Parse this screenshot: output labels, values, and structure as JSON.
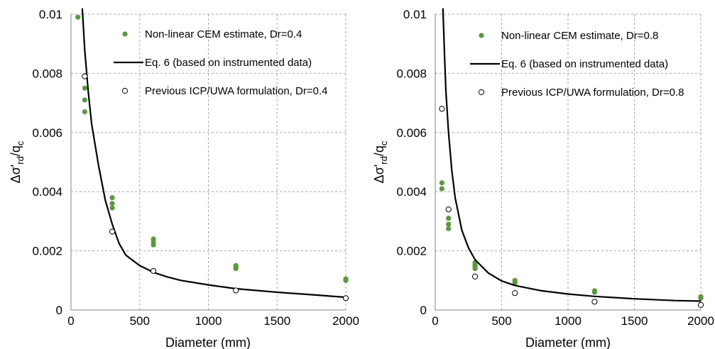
{
  "chart_data": [
    {
      "type": "scatter",
      "title": "",
      "xlabel": "Diameter (mm)",
      "ylabel": {
        "main": "Δσ'",
        "sub1": "rd",
        "slash": "/q",
        "sub2": "c"
      },
      "xlim": [
        0,
        2000
      ],
      "ylim": [
        0,
        0.01
      ],
      "xticks": [
        0,
        500,
        1000,
        1500,
        2000
      ],
      "yticks": [
        0,
        0.002,
        0.004,
        0.006,
        0.008,
        0.01
      ],
      "xtick_labels": [
        "0",
        "500",
        "1000",
        "1500",
        "2000"
      ],
      "ytick_labels": [
        "0",
        "0.002",
        "0.004",
        "0.006",
        "0.008",
        "0.01"
      ],
      "grid": true,
      "legend_position": "top-right, inside plot",
      "series": [
        {
          "name": "Non-linear CEM estimate, Dr=0.4",
          "kind": "points-filled",
          "color": "#5b9a3c",
          "points": [
            [
              50,
              0.0099
            ],
            [
              100,
              0.0075
            ],
            [
              100,
              0.0071
            ],
            [
              100,
              0.0067
            ],
            [
              300,
              0.0038
            ],
            [
              300,
              0.0036
            ],
            [
              300,
              0.00345
            ],
            [
              600,
              0.0024
            ],
            [
              600,
              0.0023
            ],
            [
              600,
              0.0022
            ],
            [
              1200,
              0.0015
            ],
            [
              1200,
              0.00145
            ],
            [
              1200,
              0.0014
            ],
            [
              2000,
              0.00105
            ],
            [
              2000,
              0.001
            ]
          ]
        },
        {
          "name": "Eq. 6 (based on instrumented data)",
          "kind": "line",
          "color": "#000000",
          "points": [
            [
              82,
              0.0102
            ],
            [
              100,
              0.0088
            ],
            [
              125,
              0.0074
            ],
            [
              150,
              0.0063
            ],
            [
              200,
              0.0049
            ],
            [
              250,
              0.0037
            ],
            [
              300,
              0.0029
            ],
            [
              350,
              0.00225
            ],
            [
              400,
              0.00185
            ],
            [
              500,
              0.0015
            ],
            [
              600,
              0.00127
            ],
            [
              700,
              0.00112
            ],
            [
              800,
              0.001
            ],
            [
              1000,
              0.00085
            ],
            [
              1200,
              0.00072
            ],
            [
              1500,
              0.0006
            ],
            [
              1800,
              0.0005
            ],
            [
              2000,
              0.00043
            ]
          ]
        },
        {
          "name": "Previous ICP/UWA formulation, Dr=0.4",
          "kind": "points-open",
          "color": "#000000",
          "points": [
            [
              100,
              0.0079
            ],
            [
              300,
              0.00265
            ],
            [
              600,
              0.00132
            ],
            [
              1200,
              0.00066
            ],
            [
              2000,
              0.0004
            ]
          ]
        }
      ]
    },
    {
      "type": "scatter",
      "title": "",
      "xlabel": "Diameter (mm)",
      "ylabel": {
        "main": "Δσ'",
        "sub1": "rd",
        "slash": "/q",
        "sub2": "c"
      },
      "xlim": [
        0,
        2000
      ],
      "ylim": [
        0,
        0.01
      ],
      "xticks": [
        0,
        500,
        1000,
        1500,
        2000
      ],
      "yticks": [
        0,
        0.002,
        0.004,
        0.006,
        0.008,
        0.01
      ],
      "xtick_labels": [
        "0",
        "500",
        "1000",
        "1500",
        "2000"
      ],
      "ytick_labels": [
        "0",
        "0.002",
        "0.004",
        "0.006",
        "0.008",
        "0.01"
      ],
      "grid": true,
      "legend_position": "top-right, inside plot",
      "series": [
        {
          "name": "Non-linear CEM estimate, Dr=0.8",
          "kind": "points-filled",
          "color": "#5b9a3c",
          "points": [
            [
              50,
              0.0043
            ],
            [
              50,
              0.0041
            ],
            [
              100,
              0.0031
            ],
            [
              100,
              0.0029
            ],
            [
              100,
              0.00275
            ],
            [
              300,
              0.0016
            ],
            [
              300,
              0.00155
            ],
            [
              300,
              0.00148
            ],
            [
              300,
              0.0014
            ],
            [
              600,
              0.001
            ],
            [
              600,
              0.00095
            ],
            [
              600,
              0.0009
            ],
            [
              1200,
              0.00065
            ],
            [
              1200,
              0.0006
            ],
            [
              2000,
              0.00045
            ],
            [
              2000,
              0.0004
            ]
          ]
        },
        {
          "name": "Eq. 6 (based on instrumented data)",
          "kind": "line",
          "color": "#000000",
          "points": [
            [
              58,
              0.0102
            ],
            [
              70,
              0.0086
            ],
            [
              80,
              0.0074
            ],
            [
              100,
              0.006
            ],
            [
              125,
              0.0047
            ],
            [
              150,
              0.0038
            ],
            [
              200,
              0.0027
            ],
            [
              250,
              0.0021
            ],
            [
              300,
              0.0017
            ],
            [
              400,
              0.00125
            ],
            [
              500,
              0.00098
            ],
            [
              600,
              0.00083
            ],
            [
              800,
              0.00065
            ],
            [
              1000,
              0.00054
            ],
            [
              1200,
              0.00046
            ],
            [
              1500,
              0.00038
            ],
            [
              1800,
              0.00032
            ],
            [
              2000,
              0.0003
            ]
          ]
        },
        {
          "name": "Previous ICP/UWA formulation, Dr=0.8",
          "kind": "points-open",
          "color": "#000000",
          "points": [
            [
              50,
              0.0068
            ],
            [
              100,
              0.0034
            ],
            [
              300,
              0.00113
            ],
            [
              600,
              0.00057
            ],
            [
              1200,
              0.00028
            ],
            [
              2000,
              0.00017
            ]
          ]
        }
      ]
    }
  ]
}
